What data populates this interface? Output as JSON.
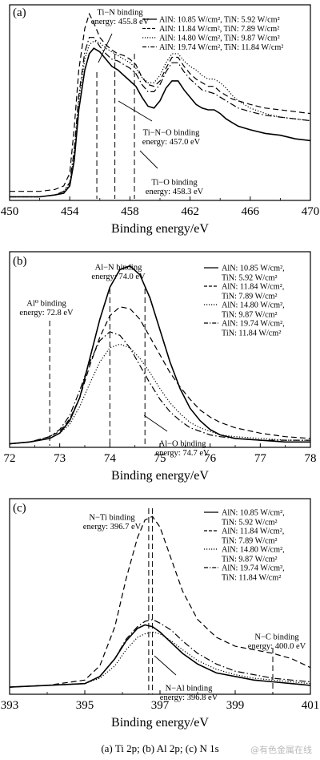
{
  "chart_data": [
    {
      "id": "a",
      "type": "line",
      "panel_label": "(a)",
      "xlabel": "Binding energy/eV",
      "xlim": [
        450,
        470
      ],
      "xticks": [
        "450",
        "454",
        "458",
        "462",
        "466",
        "470"
      ],
      "xtick_values": [
        450,
        454,
        458,
        462,
        466,
        470
      ],
      "ylim": [
        0,
        1.08
      ],
      "legend_position": "top-right",
      "series": [
        {
          "name": "AlN: 10.85 W/cm², TiN: 5.92 W/cm²",
          "style": "solid",
          "x": [
            450,
            451,
            452,
            453,
            453.6,
            454,
            454.3,
            454.6,
            455,
            455.3,
            455.6,
            456,
            456.4,
            456.8,
            457.2,
            457.6,
            458,
            458.4,
            458.8,
            459.2,
            459.6,
            460,
            460.4,
            460.8,
            461.2,
            461.6,
            462,
            462.4,
            462.8,
            463.2,
            463.6,
            464,
            464.4,
            464.8,
            465.2,
            466,
            467,
            468,
            469,
            470
          ],
          "y": [
            0.02,
            0.02,
            0.02,
            0.03,
            0.04,
            0.08,
            0.22,
            0.5,
            0.72,
            0.81,
            0.84,
            0.82,
            0.78,
            0.74,
            0.72,
            0.69,
            0.66,
            0.63,
            0.57,
            0.52,
            0.51,
            0.55,
            0.62,
            0.66,
            0.66,
            0.61,
            0.57,
            0.53,
            0.51,
            0.5,
            0.5,
            0.48,
            0.45,
            0.43,
            0.41,
            0.39,
            0.37,
            0.36,
            0.34,
            0.33
          ]
        },
        {
          "name": "AlN: 11.84 W/cm², TiN: 7.89 W/cm²",
          "style": "dashed",
          "x": [
            450,
            451,
            452,
            453,
            453.6,
            454,
            454.3,
            454.6,
            455,
            455.3,
            455.6,
            456,
            456.4,
            456.8,
            457.2,
            457.6,
            458,
            458.4,
            458.8,
            459.2,
            459.6,
            460,
            460.4,
            460.8,
            461.2,
            461.6,
            462,
            462.4,
            462.8,
            463.2,
            463.6,
            464,
            464.4,
            464.8,
            465.2,
            466,
            467,
            468,
            469,
            470
          ],
          "y": [
            0.05,
            0.05,
            0.05,
            0.06,
            0.08,
            0.15,
            0.4,
            0.72,
            0.95,
            1.03,
            0.98,
            0.9,
            0.86,
            0.83,
            0.81,
            0.8,
            0.78,
            0.75,
            0.68,
            0.64,
            0.63,
            0.66,
            0.73,
            0.79,
            0.79,
            0.74,
            0.7,
            0.67,
            0.65,
            0.63,
            0.63,
            0.6,
            0.58,
            0.56,
            0.55,
            0.53,
            0.51,
            0.5,
            0.49,
            0.48
          ]
        },
        {
          "name": "AlN: 14.80 W/cm², TiN: 9.87 W/cm²",
          "style": "dotted",
          "x": [
            450,
            451,
            452,
            453,
            453.6,
            454,
            454.3,
            454.6,
            455,
            455.3,
            455.6,
            456,
            456.4,
            456.8,
            457.2,
            457.6,
            458,
            458.4,
            458.8,
            459.2,
            459.6,
            460,
            460.4,
            460.8,
            461.2,
            461.6,
            462,
            462.4,
            462.8,
            463.2,
            463.6,
            464,
            464.4,
            464.8,
            465.2,
            466,
            467,
            468,
            469,
            470
          ],
          "y": [
            0.02,
            0.02,
            0.02,
            0.03,
            0.05,
            0.09,
            0.25,
            0.55,
            0.78,
            0.86,
            0.88,
            0.87,
            0.84,
            0.82,
            0.8,
            0.78,
            0.76,
            0.73,
            0.68,
            0.65,
            0.65,
            0.69,
            0.76,
            0.81,
            0.81,
            0.77,
            0.74,
            0.72,
            0.69,
            0.67,
            0.67,
            0.65,
            0.62,
            0.58,
            0.55,
            0.51,
            0.48,
            0.46,
            0.45,
            0.44
          ]
        },
        {
          "name": "AlN: 19.74 W/cm², TiN: 11.84 W/cm²",
          "style": "dashdot",
          "x": [
            450,
            451,
            452,
            453,
            453.6,
            454,
            454.3,
            454.6,
            455,
            455.3,
            455.6,
            456,
            456.4,
            456.8,
            457.2,
            457.6,
            458,
            458.4,
            458.8,
            459.2,
            459.6,
            460,
            460.4,
            460.8,
            461.2,
            461.6,
            462,
            462.4,
            462.8,
            463.2,
            463.6,
            464,
            464.4,
            464.8,
            465.2,
            466,
            467,
            468,
            469,
            470
          ],
          "y": [
            0.02,
            0.02,
            0.02,
            0.03,
            0.05,
            0.1,
            0.28,
            0.58,
            0.82,
            0.9,
            0.9,
            0.85,
            0.81,
            0.78,
            0.77,
            0.75,
            0.73,
            0.7,
            0.64,
            0.6,
            0.6,
            0.64,
            0.71,
            0.76,
            0.76,
            0.71,
            0.67,
            0.64,
            0.61,
            0.6,
            0.59,
            0.57,
            0.55,
            0.53,
            0.51,
            0.49,
            0.47,
            0.46,
            0.45,
            0.44
          ]
        }
      ],
      "reference_lines": [
        455.8,
        457.0,
        458.3
      ],
      "annotations": [
        {
          "line1": "Ti−N binding",
          "line2": "energy: 455.8 eV"
        },
        {
          "line1": "Ti−N−O binding",
          "line2": "energy: 457.0 eV"
        },
        {
          "line1": "Ti−O binding",
          "line2": "energy: 458.3 eV"
        }
      ]
    },
    {
      "id": "b",
      "type": "line",
      "panel_label": "(b)",
      "xlabel": "Binding energy/eV",
      "xlim": [
        72,
        78
      ],
      "xticks": [
        "72",
        "73",
        "74",
        "75",
        "76",
        "77",
        "78"
      ],
      "xtick_values": [
        72,
        73,
        74,
        75,
        76,
        77,
        78
      ],
      "ylim": [
        0,
        1.1
      ],
      "legend_position": "top-right",
      "series": [
        {
          "name": "AlN: 10.85 W/cm², TiN: 5.92 W/cm²",
          "style": "solid",
          "x": [
            72,
            72.4,
            72.8,
            73.0,
            73.2,
            73.4,
            73.6,
            73.8,
            74.0,
            74.2,
            74.4,
            74.6,
            74.8,
            75.0,
            75.2,
            75.4,
            75.6,
            75.8,
            76.0,
            76.2,
            76.5,
            77.0,
            77.5,
            78.0
          ],
          "y": [
            0.02,
            0.03,
            0.05,
            0.08,
            0.15,
            0.28,
            0.5,
            0.72,
            0.9,
            1.0,
            1.02,
            0.97,
            0.84,
            0.66,
            0.48,
            0.33,
            0.22,
            0.15,
            0.1,
            0.07,
            0.05,
            0.04,
            0.03,
            0.03
          ]
        },
        {
          "name": "AlN: 11.84 W/cm², TiN: 7.89 W/cm²",
          "style": "dashed",
          "x": [
            72,
            72.4,
            72.8,
            73.0,
            73.2,
            73.4,
            73.6,
            73.8,
            74.0,
            74.2,
            74.4,
            74.6,
            74.8,
            75.0,
            75.2,
            75.4,
            75.6,
            75.8,
            76.0,
            76.2,
            76.5,
            77.0,
            77.5,
            78.0
          ],
          "y": [
            0.02,
            0.03,
            0.06,
            0.09,
            0.16,
            0.28,
            0.46,
            0.62,
            0.74,
            0.79,
            0.78,
            0.72,
            0.62,
            0.52,
            0.42,
            0.34,
            0.27,
            0.21,
            0.17,
            0.14,
            0.11,
            0.08,
            0.06,
            0.05
          ]
        },
        {
          "name": "AlN: 14.80 W/cm², TiN: 9.87 W/cm²",
          "style": "dotted",
          "x": [
            72,
            72.4,
            72.8,
            73.0,
            73.2,
            73.4,
            73.6,
            73.8,
            74.0,
            74.2,
            74.4,
            74.6,
            74.8,
            75.0,
            75.2,
            75.4,
            75.6,
            75.8,
            76.0,
            76.2,
            76.5,
            77.0,
            77.5,
            78.0
          ],
          "y": [
            0.02,
            0.03,
            0.05,
            0.08,
            0.13,
            0.23,
            0.36,
            0.48,
            0.56,
            0.58,
            0.56,
            0.5,
            0.42,
            0.33,
            0.25,
            0.19,
            0.14,
            0.11,
            0.09,
            0.07,
            0.06,
            0.05,
            0.04,
            0.04
          ]
        },
        {
          "name": "AlN: 19.74 W/cm², TiN: 11.84 W/cm²",
          "style": "dashdot",
          "x": [
            72,
            72.4,
            72.8,
            73.0,
            73.2,
            73.4,
            73.6,
            73.8,
            74.0,
            74.2,
            74.4,
            74.6,
            74.8,
            75.0,
            75.2,
            75.4,
            75.6,
            75.8,
            76.0,
            76.2,
            76.5,
            77.0,
            77.5,
            78.0
          ],
          "y": [
            0.02,
            0.03,
            0.06,
            0.1,
            0.18,
            0.32,
            0.48,
            0.6,
            0.65,
            0.63,
            0.56,
            0.46,
            0.36,
            0.27,
            0.2,
            0.15,
            0.11,
            0.09,
            0.07,
            0.06,
            0.05,
            0.04,
            0.04,
            0.04
          ]
        }
      ],
      "reference_lines": [
        72.8,
        74.0,
        74.7
      ],
      "annotations": [
        {
          "line1": "Al−N binding",
          "line2": "energy: 74.0 eV"
        },
        {
          "line1": "Al⁰ binding",
          "line2": "energy: 72.8 eV"
        },
        {
          "line1": "Al−O binding",
          "line2": "energy: 74.7 eV"
        }
      ]
    },
    {
      "id": "c",
      "type": "line",
      "panel_label": "(c)",
      "xlabel": "Binding energy/eV",
      "xlim": [
        393,
        401
      ],
      "xticks": [
        "393",
        "395",
        "397",
        "399",
        "401"
      ],
      "xtick_values": [
        393,
        395,
        397,
        399,
        401
      ],
      "ylim": [
        0,
        1.1
      ],
      "legend_position": "top-right",
      "series": [
        {
          "name": "AlN: 10.85 W/cm², TiN: 5.92 W/cm²",
          "style": "solid",
          "x": [
            393,
            394,
            395,
            395.4,
            395.8,
            396.1,
            396.4,
            396.6,
            396.8,
            397.0,
            397.3,
            397.6,
            398.0,
            398.5,
            399,
            399.5,
            400,
            400.5,
            401
          ],
          "y": [
            0.04,
            0.05,
            0.06,
            0.1,
            0.2,
            0.3,
            0.37,
            0.39,
            0.38,
            0.35,
            0.29,
            0.23,
            0.17,
            0.12,
            0.1,
            0.08,
            0.07,
            0.06,
            0.05
          ]
        },
        {
          "name": "AlN: 11.84 W/cm², TiN: 7.89 W/cm²",
          "style": "dashed",
          "x": [
            393,
            394,
            395,
            395.4,
            395.8,
            396.1,
            396.4,
            396.6,
            396.8,
            397.0,
            397.3,
            397.6,
            398.0,
            398.5,
            399,
            399.5,
            400,
            400.5,
            401
          ],
          "y": [
            0.04,
            0.05,
            0.08,
            0.16,
            0.38,
            0.65,
            0.88,
            0.98,
            1.0,
            0.94,
            0.76,
            0.58,
            0.42,
            0.32,
            0.27,
            0.25,
            0.23,
            0.2,
            0.15
          ]
        },
        {
          "name": "AlN: 14.80 W/cm², TiN: 9.87 W/cm²",
          "style": "dotted",
          "x": [
            393,
            394,
            395,
            395.4,
            395.8,
            396.1,
            396.4,
            396.6,
            396.8,
            397.0,
            397.3,
            397.6,
            398.0,
            398.5,
            399,
            399.5,
            400,
            400.5,
            401
          ],
          "y": [
            0.04,
            0.05,
            0.06,
            0.09,
            0.16,
            0.25,
            0.32,
            0.34,
            0.35,
            0.34,
            0.3,
            0.25,
            0.19,
            0.14,
            0.11,
            0.09,
            0.08,
            0.07,
            0.06
          ]
        },
        {
          "name": "AlN: 19.74 W/cm², TiN: 11.84 W/cm²",
          "style": "dashdot",
          "x": [
            393,
            394,
            395,
            395.4,
            395.8,
            396.1,
            396.4,
            396.6,
            396.8,
            397.0,
            397.3,
            397.6,
            398.0,
            398.5,
            399,
            399.5,
            400,
            400.5,
            401
          ],
          "y": [
            0.04,
            0.05,
            0.06,
            0.1,
            0.2,
            0.31,
            0.38,
            0.41,
            0.42,
            0.4,
            0.36,
            0.3,
            0.23,
            0.17,
            0.13,
            0.11,
            0.09,
            0.08,
            0.07
          ]
        }
      ],
      "reference_lines": [
        396.7,
        396.8,
        400.0
      ],
      "annotations": [
        {
          "line1": "N−Ti binding",
          "line2": "energy: 396.7 eV"
        },
        {
          "line1": "N−C binding",
          "line2": "energy: 400.0 eV"
        },
        {
          "line1": "N−Al binding",
          "line2": "energy: 396.8 eV"
        }
      ]
    }
  ],
  "legend_items_b": [
    "AlN: 10.85 W/cm²,",
    "TiN: 5.92 W/cm²",
    "AlN: 11.84 W/cm²,",
    "TiN: 7.89 W/cm²",
    "AlN: 14.80 W/cm²,",
    "TiN: 9.87 W/cm²",
    "AlN: 19.74 W/cm²,",
    "TiN: 11.84 W/cm²"
  ],
  "caption": "(a) Ti 2p; (b) Al 2p; (c) N 1s",
  "watermark": "@有色金属在线"
}
